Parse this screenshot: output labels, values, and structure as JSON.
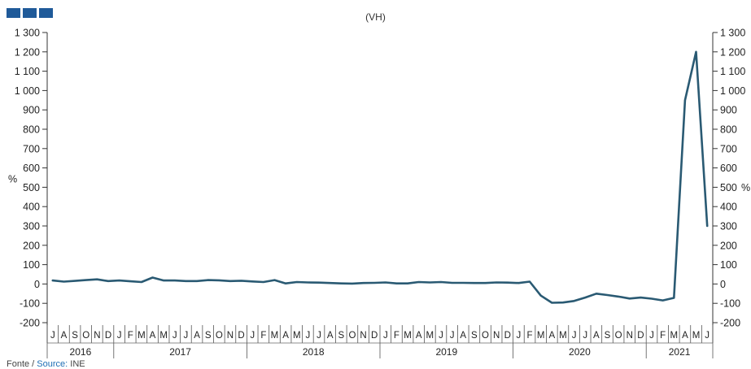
{
  "chart_data": {
    "type": "line",
    "subtitle": "(VH)",
    "ylabel_left": "%",
    "ylabel_right": "%",
    "ylim": [
      -200,
      1300
    ],
    "yticks": [
      -200,
      -100,
      0,
      100,
      200,
      300,
      400,
      500,
      600,
      700,
      800,
      900,
      1000,
      1100,
      1200,
      1300
    ],
    "ytick_labels": [
      "-200",
      "-100",
      "0",
      "100",
      "200",
      "300",
      "400",
      "500",
      "600",
      "700",
      "800",
      "900",
      "1 000",
      "1 100",
      "1 200",
      "1 300"
    ],
    "grid": false,
    "color": "#2a5a73",
    "x": [
      "J",
      "A",
      "S",
      "O",
      "N",
      "D",
      "J",
      "F",
      "M",
      "A",
      "M",
      "J",
      "J",
      "A",
      "S",
      "O",
      "N",
      "D",
      "J",
      "F",
      "M",
      "A",
      "M",
      "J",
      "J",
      "A",
      "S",
      "O",
      "N",
      "D",
      "J",
      "F",
      "M",
      "A",
      "M",
      "J",
      "J",
      "A",
      "S",
      "O",
      "N",
      "D",
      "J",
      "F",
      "M",
      "A",
      "M",
      "J",
      "J",
      "A",
      "S",
      "O",
      "N",
      "D",
      "J",
      "F",
      "M",
      "A",
      "M",
      "J"
    ],
    "years": [
      {
        "label": "2016",
        "start": 0,
        "count": 6
      },
      {
        "label": "2017",
        "start": 6,
        "count": 12
      },
      {
        "label": "2018",
        "start": 18,
        "count": 12
      },
      {
        "label": "2019",
        "start": 30,
        "count": 12
      },
      {
        "label": "2020",
        "start": 42,
        "count": 12
      },
      {
        "label": "2021",
        "start": 54,
        "count": 6
      }
    ],
    "series": [
      {
        "values": [
          18,
          12,
          16,
          20,
          24,
          15,
          18,
          14,
          10,
          33,
          18,
          18,
          15,
          15,
          20,
          19,
          15,
          17,
          13,
          10,
          20,
          3,
          10,
          8,
          7,
          5,
          3,
          2,
          5,
          6,
          8,
          3,
          3,
          10,
          8,
          10,
          6,
          6,
          5,
          5,
          8,
          7,
          5,
          12,
          -60,
          -97,
          -96,
          -88,
          -70,
          -50,
          -57,
          -65,
          -75,
          -70,
          -76,
          -85,
          -72,
          950,
          1200,
          300
        ]
      }
    ]
  },
  "footer": {
    "prefix": "Fonte / ",
    "link": "Source:",
    "suffix": " INE"
  }
}
